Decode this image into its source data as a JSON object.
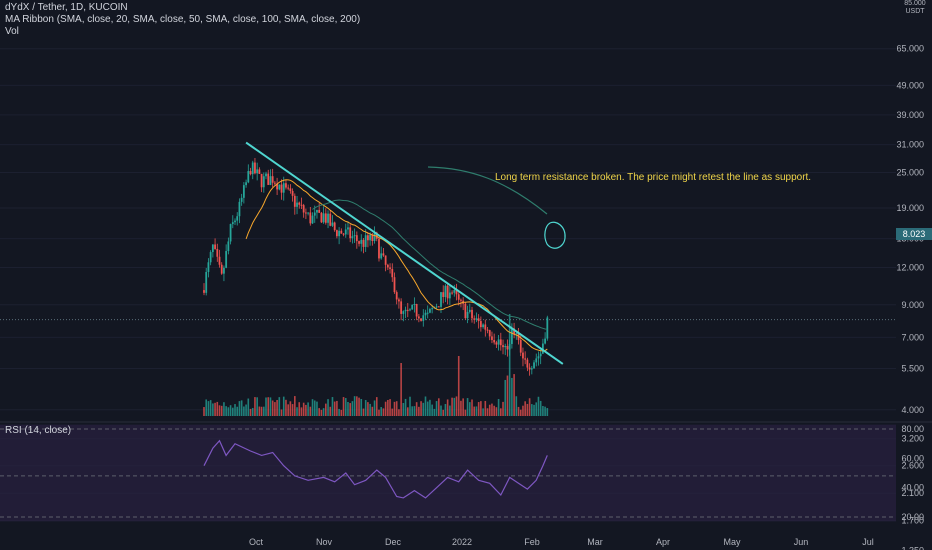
{
  "header": {
    "symbol_line": "dYdX / Tether, 1D, KUCOIN",
    "ma_line": "MA Ribbon (SMA, close, 20, SMA, close, 50, SMA, close, 100, SMA, close, 200)",
    "vol_line": "Vol"
  },
  "annotation": "Long term resistance broken. The price might retest the line as support.",
  "current_price": "8.023",
  "top_axis_label": {
    "value": "85.000",
    "unit": "USDT"
  },
  "rsi_label": "RSI (14, close)",
  "colors": {
    "background": "#131722",
    "up": "#26a69a",
    "down": "#ef5350",
    "trendline": "#4fd6d0",
    "annotation": "#f0d54a",
    "rsi_line": "#7e57c2",
    "rsi_band": "#2a2140",
    "ma_fast": "#f7a72c",
    "ma_slow": "#2f7d6d"
  },
  "chart_data": [
    {
      "type": "candlestick",
      "title": "dYdX / Tether, 1D, KUCOIN",
      "y_scale": "log",
      "y_ticks": [
        "65.000",
        "49.000",
        "39.000",
        "31.000",
        "25.000",
        "19.000",
        "15.000",
        "12.000",
        "9.000",
        "7.000",
        "5.500",
        "4.000",
        "3.200",
        "2.600",
        "2.100",
        "1.700",
        "1.350"
      ],
      "x_ticks": [
        "Oct",
        "Nov",
        "Dec",
        "2022",
        "Feb",
        "Mar",
        "Apr",
        "May",
        "Jun",
        "Jul"
      ],
      "x_range": [
        "2021-09-08",
        "2022-07-12"
      ],
      "close_anchors": [
        {
          "x": "2021-09-08",
          "y": 10.5
        },
        {
          "x": "2021-09-12",
          "y": 14
        },
        {
          "x": "2021-09-16",
          "y": 11
        },
        {
          "x": "2021-09-20",
          "y": 16
        },
        {
          "x": "2021-09-24",
          "y": 19
        },
        {
          "x": "2021-09-29",
          "y": 26
        },
        {
          "x": "2021-10-04",
          "y": 23.5
        },
        {
          "x": "2021-10-09",
          "y": 24
        },
        {
          "x": "2021-10-14",
          "y": 22
        },
        {
          "x": "2021-10-20",
          "y": 19.5
        },
        {
          "x": "2021-10-26",
          "y": 17.5
        },
        {
          "x": "2021-11-01",
          "y": 18
        },
        {
          "x": "2021-11-06",
          "y": 16
        },
        {
          "x": "2021-11-12",
          "y": 15.5
        },
        {
          "x": "2021-11-18",
          "y": 14.5
        },
        {
          "x": "2021-11-24",
          "y": 15
        },
        {
          "x": "2021-11-28",
          "y": 12.5
        },
        {
          "x": "2021-12-03",
          "y": 10.5
        },
        {
          "x": "2021-12-06",
          "y": 8.2
        },
        {
          "x": "2021-12-12",
          "y": 8.6
        },
        {
          "x": "2021-12-18",
          "y": 8.2
        },
        {
          "x": "2021-12-24",
          "y": 9.5
        },
        {
          "x": "2021-12-28",
          "y": 10.2
        },
        {
          "x": "2022-01-02",
          "y": 8.9
        },
        {
          "x": "2022-01-08",
          "y": 8.0
        },
        {
          "x": "2022-01-14",
          "y": 7.5
        },
        {
          "x": "2022-01-19",
          "y": 6.8
        },
        {
          "x": "2022-01-22",
          "y": 6.2
        },
        {
          "x": "2022-01-26",
          "y": 7.6
        },
        {
          "x": "2022-01-30",
          "y": 5.7
        },
        {
          "x": "2022-02-03",
          "y": 5.8
        },
        {
          "x": "2022-02-07",
          "y": 6.2
        },
        {
          "x": "2022-02-10",
          "y": 8.0
        }
      ],
      "trendline": [
        {
          "x": "2021-09-27",
          "y": 31.5
        },
        {
          "x": "2022-02-17",
          "y": 5.7
        }
      ],
      "current_price": 8.023
    },
    {
      "type": "bar",
      "title": "Vol",
      "series": [
        {
          "values_relative": "daily volume bars, spike near 2022-01-24"
        }
      ]
    },
    {
      "type": "line",
      "title": "RSI (14, close)",
      "y_ticks": [
        "80.00",
        "60.00",
        "40.00",
        "20.00"
      ],
      "ylim": [
        15,
        85
      ],
      "band": [
        30,
        70
      ],
      "points": [
        {
          "x": "2021-09-08",
          "y": 55
        },
        {
          "x": "2021-09-12",
          "y": 67
        },
        {
          "x": "2021-09-15",
          "y": 72
        },
        {
          "x": "2021-09-18",
          "y": 62
        },
        {
          "x": "2021-09-22",
          "y": 70
        },
        {
          "x": "2021-09-29",
          "y": 65
        },
        {
          "x": "2021-10-04",
          "y": 62
        },
        {
          "x": "2021-10-09",
          "y": 64
        },
        {
          "x": "2021-10-14",
          "y": 55
        },
        {
          "x": "2021-10-19",
          "y": 48
        },
        {
          "x": "2021-10-25",
          "y": 45
        },
        {
          "x": "2021-11-01",
          "y": 47
        },
        {
          "x": "2021-11-06",
          "y": 44
        },
        {
          "x": "2021-11-11",
          "y": 50
        },
        {
          "x": "2021-11-15",
          "y": 42
        },
        {
          "x": "2021-11-20",
          "y": 45
        },
        {
          "x": "2021-11-25",
          "y": 52
        },
        {
          "x": "2021-11-29",
          "y": 47
        },
        {
          "x": "2021-12-04",
          "y": 34
        },
        {
          "x": "2021-12-07",
          "y": 33
        },
        {
          "x": "2021-12-12",
          "y": 38
        },
        {
          "x": "2021-12-17",
          "y": 33
        },
        {
          "x": "2021-12-22",
          "y": 40
        },
        {
          "x": "2021-12-27",
          "y": 47
        },
        {
          "x": "2022-01-01",
          "y": 44
        },
        {
          "x": "2022-01-05",
          "y": 52
        },
        {
          "x": "2022-01-10",
          "y": 45
        },
        {
          "x": "2022-01-15",
          "y": 43
        },
        {
          "x": "2022-01-20",
          "y": 35
        },
        {
          "x": "2022-01-24",
          "y": 47
        },
        {
          "x": "2022-01-28",
          "y": 43
        },
        {
          "x": "2022-02-01",
          "y": 39
        },
        {
          "x": "2022-02-05",
          "y": 45
        },
        {
          "x": "2022-02-08",
          "y": 55
        },
        {
          "x": "2022-02-10",
          "y": 62
        }
      ]
    }
  ]
}
